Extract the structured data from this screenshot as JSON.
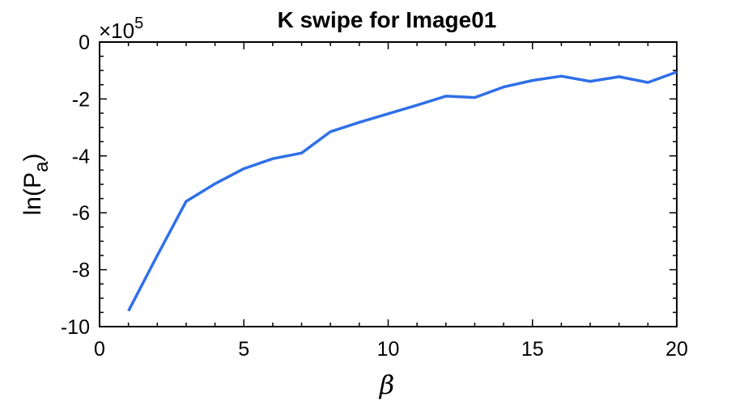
{
  "chart_data": {
    "type": "line",
    "title": "K swipe for Image01",
    "xlabel": "β",
    "ylabel_main": "ln(P",
    "ylabel_sub": "a",
    "ylabel_close": ")",
    "y_multiplier": {
      "base": "×10",
      "exponent": "5"
    },
    "xlim": [
      0,
      20
    ],
    "ylim": [
      -10,
      0
    ],
    "x_ticks": [
      0,
      5,
      10,
      15,
      20
    ],
    "y_ticks": [
      0,
      -2,
      -4,
      -6,
      -8,
      -10
    ],
    "grid": false,
    "line_color": "#2f6fe8",
    "series": [
      {
        "x": [
          1,
          2,
          3,
          4,
          5,
          6,
          7,
          8,
          9,
          10,
          11,
          12,
          13,
          14,
          15,
          16,
          17,
          18,
          19,
          20
        ],
        "values": [
          -9.45,
          -7.5,
          -5.6,
          -4.98,
          -4.45,
          -4.1,
          -3.9,
          -3.15,
          -2.82,
          -2.52,
          -2.22,
          -1.9,
          -1.95,
          -1.58,
          -1.35,
          -1.2,
          -1.38,
          -1.22,
          -1.42,
          -1.05
        ]
      }
    ]
  }
}
